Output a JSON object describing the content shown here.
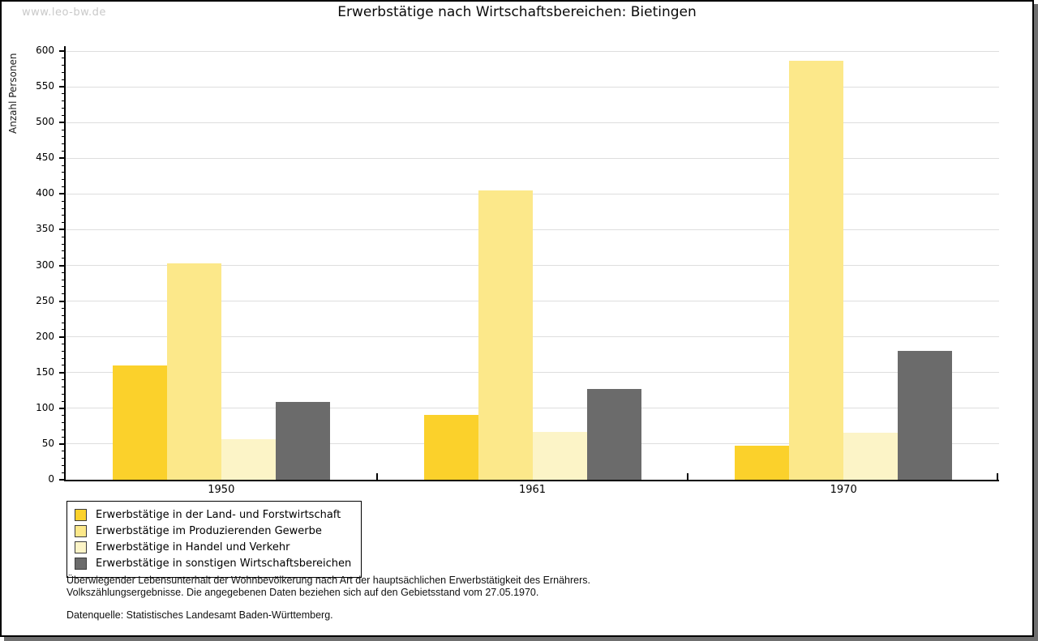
{
  "watermark": "www.leo-bw.de",
  "header": {
    "title": "Erwerbstätige nach Wirtschaftsbereichen: Bietingen"
  },
  "chart_data": {
    "type": "bar",
    "title": "Erwerbstätige nach Wirtschaftsbereichen: Bietingen",
    "xlabel": "",
    "ylabel": "Anzahl Personen",
    "categories": [
      "1950",
      "1961",
      "1970"
    ],
    "series": [
      {
        "name": "Erwerbstätige in der Land- und Forstwirtschaft",
        "color": "#FBD12B",
        "values": [
          160,
          91,
          48
        ]
      },
      {
        "name": "Erwerbstätige im Produzierenden Gewerbe",
        "color": "#FCE88A",
        "values": [
          303,
          405,
          587
        ]
      },
      {
        "name": "Erwerbstätige in Handel und Verkehr",
        "color": "#FCF4C7",
        "values": [
          57,
          67,
          66
        ]
      },
      {
        "name": "Erwerbstätige in sonstigen Wirtschaftsbereichen",
        "color": "#6B6B6B",
        "values": [
          109,
          127,
          180
        ]
      }
    ],
    "ylim": [
      0,
      600
    ],
    "ytick_step": 50,
    "yminor_step": 10,
    "grid": "horizontal",
    "legend_position": "bottom-left"
  },
  "footnotes": {
    "line1": "Überwiegender Lebensunterhalt der Wohnbevölkerung nach Art der hauptsächlichen Erwerbstätigkeit des Ernährers.",
    "line2": "Volkszählungsergebnisse. Die angegebenen Daten beziehen sich auf den Gebietsstand vom 27.05.1970.",
    "datasource": "Datenquelle: Statistisches Landesamt Baden-Württemberg."
  },
  "colors": {
    "gridline": "#DEDEDE",
    "axis": "#000000",
    "watermark": "#C9C9C9",
    "shadow": "#6F6F6F"
  }
}
